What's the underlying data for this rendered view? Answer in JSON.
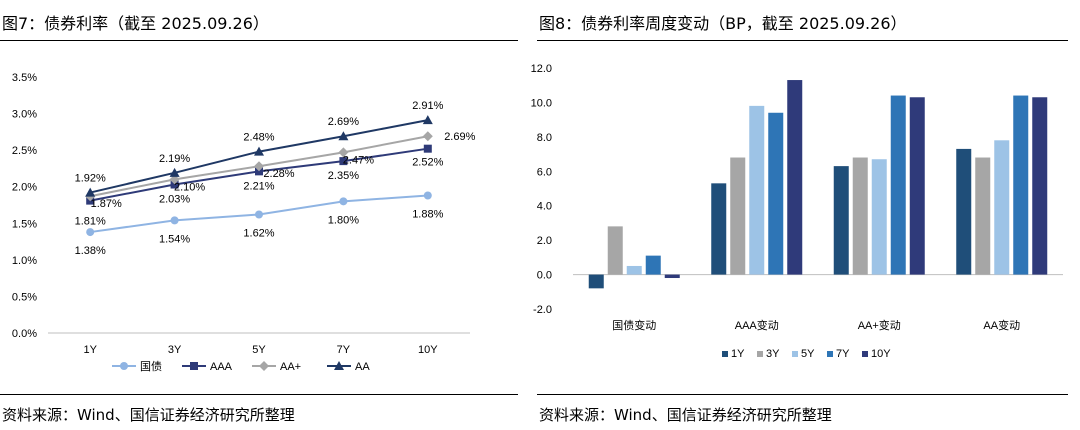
{
  "left": {
    "title": "图7：债券利率（截至 2025.09.26）",
    "source": "资料来源：Wind、国信证券经济研究所整理",
    "chart_data": {
      "type": "line",
      "categories": [
        "1Y",
        "3Y",
        "5Y",
        "7Y",
        "10Y"
      ],
      "y_ticks": [
        "0.0%",
        "0.5%",
        "1.0%",
        "1.5%",
        "2.0%",
        "2.5%",
        "3.0%",
        "3.5%"
      ],
      "ylim": [
        0,
        3.5
      ],
      "grid": false,
      "legend_position": "bottom",
      "series": [
        {
          "name": "国债",
          "values": [
            1.38,
            1.54,
            1.62,
            1.8,
            1.88
          ],
          "labels": [
            "1.38%",
            "1.54%",
            "1.62%",
            "1.80%",
            "1.88%"
          ],
          "color": "#8fb4e3",
          "marker": "circle"
        },
        {
          "name": "AAA",
          "values": [
            1.81,
            2.03,
            2.21,
            2.35,
            2.52
          ],
          "labels": [
            "1.81%",
            "2.03%",
            "2.21%",
            "2.35%",
            "2.52%"
          ],
          "color": "#2e3a78",
          "marker": "square"
        },
        {
          "name": "AA+",
          "values": [
            1.87,
            2.1,
            2.28,
            2.47,
            2.69
          ],
          "labels": [
            "1.87%",
            "2.10%",
            "2.28%",
            "2.47%",
            "2.69%"
          ],
          "color": "#a6a6a6",
          "marker": "diamond"
        },
        {
          "name": "AA",
          "values": [
            1.92,
            2.19,
            2.48,
            2.69,
            2.91
          ],
          "labels": [
            "1.92%",
            "2.19%",
            "2.48%",
            "2.69%",
            "2.91%"
          ],
          "color": "#1f3864",
          "marker": "triangle"
        }
      ]
    }
  },
  "right": {
    "title": "图8：债券利率周度变动（BP，截至 2025.09.26）",
    "source": "资料来源：Wind、国信证券经济研究所整理",
    "chart_data": {
      "type": "bar",
      "categories": [
        "国债变动",
        "AAA变动",
        "AA+变动",
        "AA变动"
      ],
      "y_ticks": [
        "-2.0",
        "0.0",
        "2.0",
        "4.0",
        "6.0",
        "8.0",
        "10.0",
        "12.0"
      ],
      "ylim": [
        -2,
        12
      ],
      "grid": false,
      "legend_position": "bottom",
      "series": [
        {
          "name": "1Y",
          "values": [
            -0.8,
            5.3,
            6.3,
            7.3
          ],
          "color": "#1f4e79"
        },
        {
          "name": "3Y",
          "values": [
            2.8,
            6.8,
            6.8,
            6.8
          ],
          "color": "#a6a6a6"
        },
        {
          "name": "5Y",
          "values": [
            0.5,
            9.8,
            6.7,
            7.8
          ],
          "color": "#9dc3e6"
        },
        {
          "name": "7Y",
          "values": [
            1.1,
            9.4,
            10.4,
            10.4
          ],
          "color": "#2e75b6"
        },
        {
          "name": "10Y",
          "values": [
            -0.2,
            11.3,
            10.3,
            10.3
          ],
          "color": "#2f3a7a"
        }
      ]
    }
  }
}
